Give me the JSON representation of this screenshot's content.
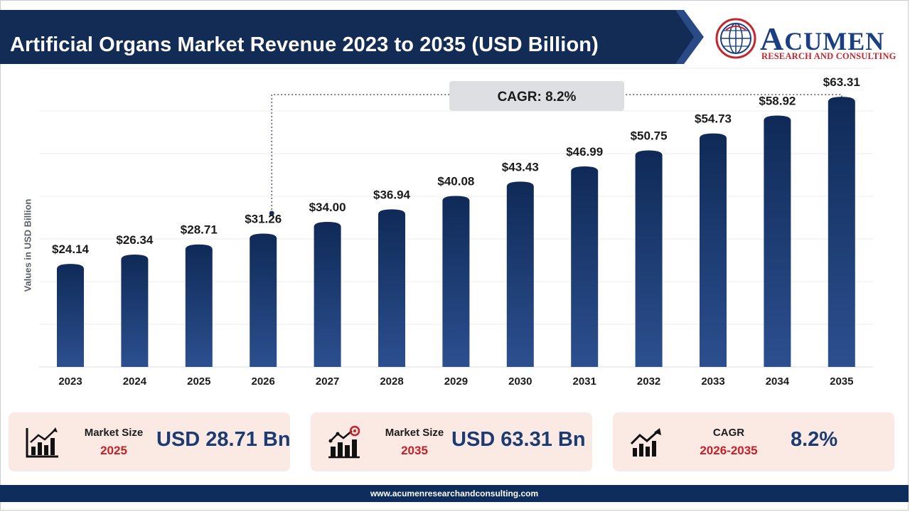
{
  "title": "Artificial Organs Market Revenue 2023 to 2035 (USD Billion)",
  "logo": {
    "name_first": "A",
    "name_rest": "CUMEN",
    "tagline": "RESEARCH AND CONSULTING"
  },
  "chart_data": {
    "type": "bar",
    "categories": [
      "2023",
      "2024",
      "2025",
      "2026",
      "2027",
      "2028",
      "2029",
      "2030",
      "2031",
      "2032",
      "2033",
      "2034",
      "2035"
    ],
    "values": [
      24.14,
      26.34,
      28.71,
      31.26,
      34.0,
      36.94,
      40.08,
      43.43,
      46.99,
      50.75,
      54.73,
      58.92,
      63.31
    ],
    "labels": [
      "$24.14",
      "$26.34",
      "$28.71",
      "$31.26",
      "$34.00",
      "$36.94",
      "$40.08",
      "$43.43",
      "$46.99",
      "$50.75",
      "$54.73",
      "$58.92",
      "$63.31"
    ],
    "ylabel": "Values in USD Billion",
    "ylim": [
      0,
      70
    ],
    "grid": true,
    "cagr_annotation": {
      "text": "CAGR: 8.2%",
      "from": "2026",
      "to": "2035"
    }
  },
  "cards": [
    {
      "icon": "bar-chart-growth-icon",
      "label": "Market Size",
      "year": "2025",
      "value": "USD 28.71 Bn"
    },
    {
      "icon": "growth-target-icon",
      "label": "Market Size",
      "year": "2035",
      "value": "USD 63.31 Bn"
    },
    {
      "icon": "trend-up-icon",
      "label": "CAGR",
      "year": "2026-2035",
      "value": "8.2%"
    }
  ],
  "footer": {
    "url": "www.acumenresearchandconsulting.com"
  },
  "colors": {
    "bar_top": "#0f2a57",
    "bar_bottom": "#2c4f8f",
    "header": "#122c55",
    "accent_red": "#c62026",
    "card_bg": "#fbeae4"
  }
}
